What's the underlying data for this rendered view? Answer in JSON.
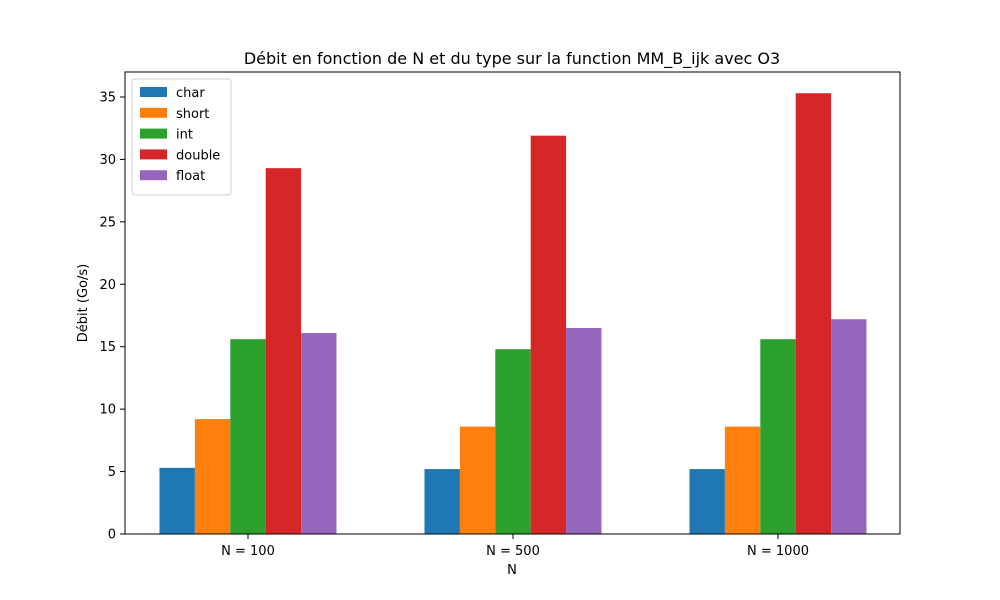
{
  "chart_data": {
    "type": "bar",
    "title": "Débit en fonction de N et du type sur la function MM_B_ijk avec O3",
    "xlabel": "N",
    "ylabel": "Débit (Go/s)",
    "categories": [
      "N = 100",
      "N = 500",
      "N = 1000"
    ],
    "series": [
      {
        "name": "char",
        "color": "#1f77b4",
        "values": [
          5.3,
          5.2,
          5.2
        ]
      },
      {
        "name": "short",
        "color": "#ff7f0e",
        "values": [
          9.2,
          8.6,
          8.6
        ]
      },
      {
        "name": "int",
        "color": "#2ca02c",
        "values": [
          15.6,
          14.8,
          15.6
        ]
      },
      {
        "name": "double",
        "color": "#d62728",
        "values": [
          29.3,
          31.9,
          35.3
        ]
      },
      {
        "name": "float",
        "color": "#9467bd",
        "values": [
          16.1,
          16.5,
          17.2
        ]
      }
    ],
    "ylim": [
      0,
      37
    ],
    "yticks": [
      0,
      5,
      10,
      15,
      20,
      25,
      30,
      35
    ],
    "grid": false,
    "legend_position": "top-left"
  }
}
